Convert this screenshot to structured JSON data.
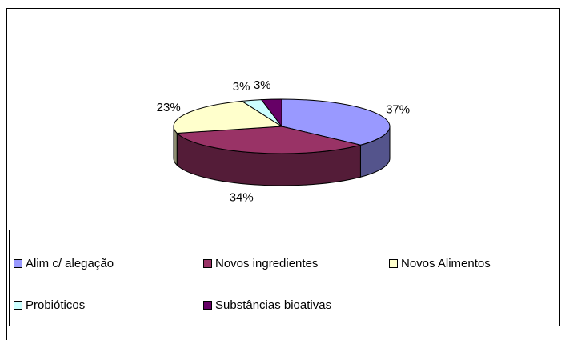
{
  "chart_data": {
    "type": "pie",
    "categories": [
      "Alim c/ alegação",
      "Novos ingredientes",
      "Novos Alimentos",
      "Probióticos",
      "Substâncias bioativas"
    ],
    "values": [
      37,
      34,
      23,
      3,
      3
    ],
    "value_labels": [
      "37%",
      "34%",
      "23%",
      "3%",
      "3%"
    ],
    "colors": [
      "#9999ff",
      "#993366",
      "#ffffcc",
      "#ccffff",
      "#660066"
    ],
    "legend": "bottom"
  }
}
